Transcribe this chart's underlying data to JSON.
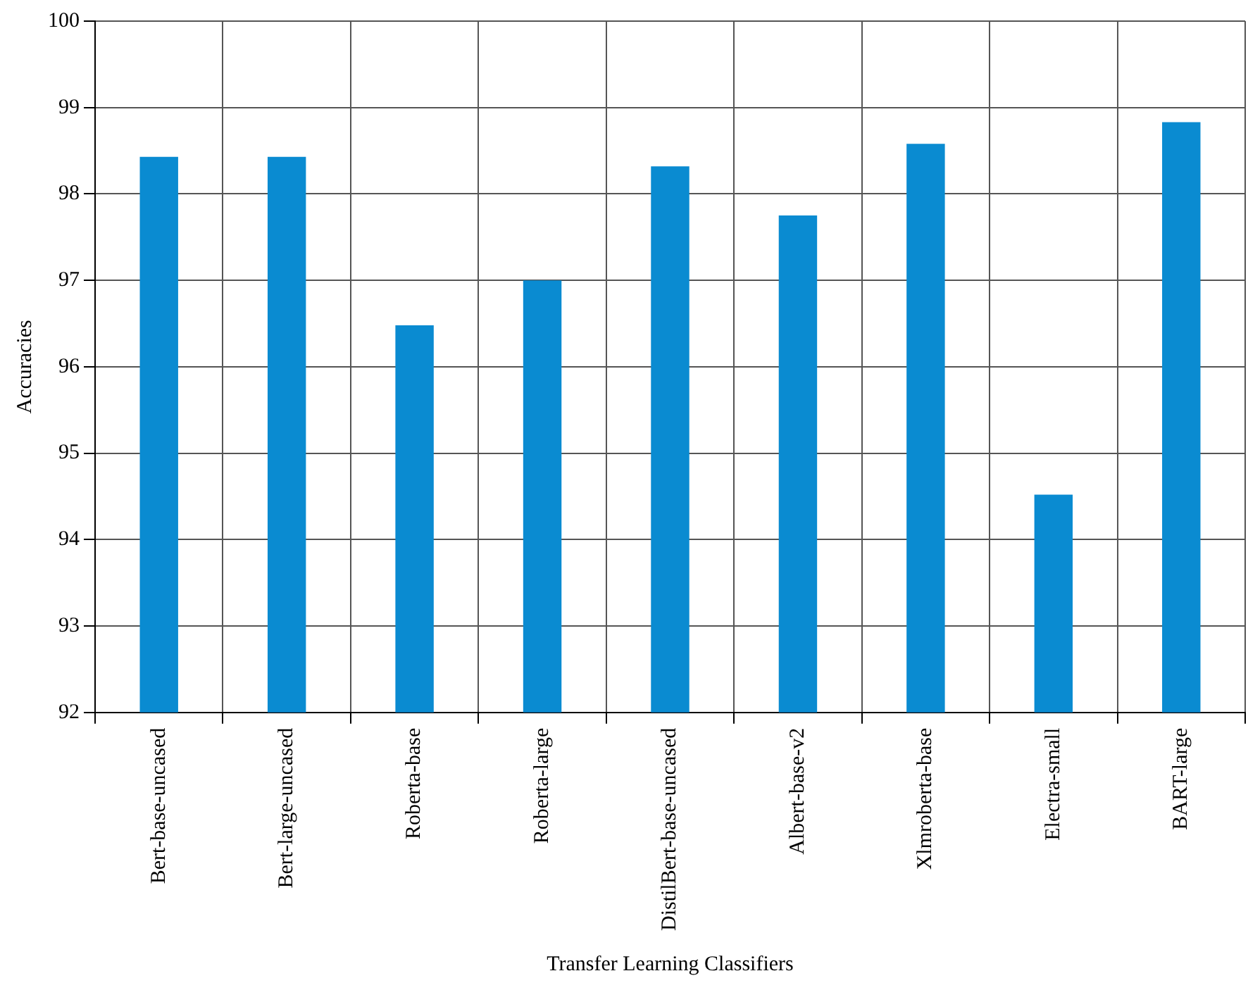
{
  "chart_data": {
    "type": "bar",
    "xlabel": "Transfer Learning Classifiers",
    "ylabel": "Accuracies",
    "categories": [
      "Bert-base-uncased",
      "Bert-large-uncased",
      "Roberta-base",
      "Roberta-large",
      "DistilBert-base-uncased",
      "Albert-base-v2",
      "Xlmroberta-base",
      "Electra-small",
      "BART-large"
    ],
    "values": [
      98.43,
      98.43,
      96.48,
      97.0,
      98.32,
      97.75,
      98.58,
      94.52,
      98.83
    ],
    "color": "#0a8bd1",
    "ylim": [
      92,
      100
    ],
    "yticks": [
      92,
      93,
      94,
      95,
      96,
      97,
      98,
      99,
      100
    ],
    "grid": true
  }
}
